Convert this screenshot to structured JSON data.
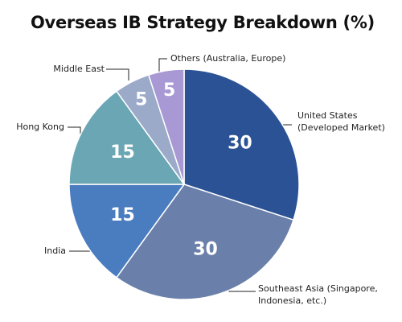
{
  "chart_data": {
    "type": "pie",
    "title": "Overseas IB Strategy Breakdown (%)",
    "categories": [
      "United States (Developed Market)",
      "Southeast Asia (Singapore, Indonesia, etc.)",
      "India",
      "Hong Kong",
      "Middle East",
      "Others (Australia, Europe)"
    ],
    "values": [
      30,
      30,
      15,
      15,
      5,
      5
    ],
    "colors": [
      "#2b5294",
      "#6a80aa",
      "#4a7cc0",
      "#6aa6b4",
      "#9aaac8",
      "#a898d4"
    ]
  }
}
